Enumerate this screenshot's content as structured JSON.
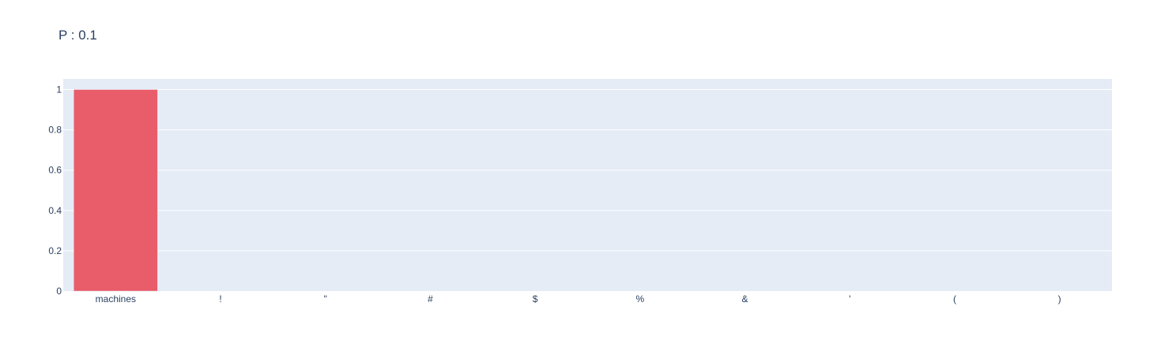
{
  "chart_data": {
    "type": "bar",
    "title": "P : 0.1",
    "categories": [
      "machines",
      "!",
      "\"",
      "#",
      "$",
      "%",
      "&",
      "'",
      "(",
      ")"
    ],
    "values": [
      1,
      0,
      0,
      0,
      0,
      0,
      0,
      0,
      0,
      0
    ],
    "ylim": [
      0,
      1
    ],
    "yticks": [
      0,
      0.2,
      0.4,
      0.6,
      0.8,
      1
    ],
    "ytick_labels": [
      "0",
      "0.2",
      "0.4",
      "0.6",
      "0.8",
      "1"
    ],
    "xlabel": "",
    "ylabel": "",
    "grid": true,
    "colors": {
      "bar": "#e95c6a",
      "plot_bg": "#e5ecf6",
      "grid": "#ffffff",
      "text": "#2a3f5f"
    }
  }
}
